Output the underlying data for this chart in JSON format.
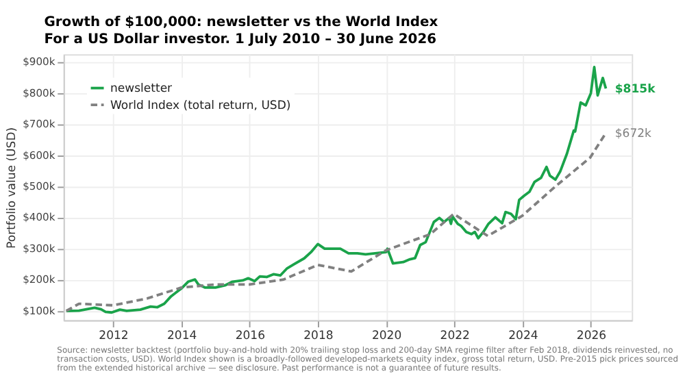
{
  "chart_data": {
    "type": "line",
    "title": "Growth of $100,000: newsletter vs the World Index",
    "subtitle": "For a US Dollar investor. 1 July 2010 – 30 June 2026",
    "ylabel": "Portfolio value (USD)",
    "xlim": [
      2010.55,
      2027.2
    ],
    "xticks": [
      2012,
      2014,
      2016,
      2018,
      2020,
      2022,
      2024,
      2026
    ],
    "ylim": [
      70,
      925
    ],
    "yticks": [
      {
        "value": 100,
        "label": "$100k"
      },
      {
        "value": 200,
        "label": "$200k"
      },
      {
        "value": 300,
        "label": "$300k"
      },
      {
        "value": 400,
        "label": "$400k"
      },
      {
        "value": 500,
        "label": "$500k"
      },
      {
        "value": 600,
        "label": "$600k"
      },
      {
        "value": 700,
        "label": "$700k"
      },
      {
        "value": 800,
        "label": "$800k"
      },
      {
        "value": 900,
        "label": "$900k"
      }
    ],
    "grid": true,
    "legend": "top left",
    "marker": "none",
    "series": [
      {
        "name": "newsletter",
        "color": "#1aa34a",
        "line_style": "solid",
        "x": [
          2010.63,
          2011.0,
          2011.46,
          2011.65,
          2011.78,
          2011.96,
          2012.2,
          2012.4,
          2012.8,
          2013.1,
          2013.3,
          2013.5,
          2013.7,
          2014.0,
          2014.2,
          2014.4,
          2014.5,
          2014.7,
          2015.0,
          2015.3,
          2015.5,
          2015.8,
          2015.96,
          2016.15,
          2016.3,
          2016.5,
          2016.7,
          2016.9,
          2017.1,
          2017.3,
          2017.6,
          2017.8,
          2018.0,
          2018.2,
          2018.4,
          2018.66,
          2018.9,
          2019.16,
          2019.4,
          2020.0,
          2020.04,
          2020.2,
          2020.5,
          2020.7,
          2020.85,
          2021.0,
          2021.16,
          2021.4,
          2021.56,
          2021.7,
          2021.85,
          2021.9,
          2021.95,
          2022.1,
          2022.2,
          2022.35,
          2022.5,
          2022.6,
          2022.7,
          2022.85,
          2023.0,
          2023.2,
          2023.4,
          2023.5,
          2023.66,
          2023.8,
          2023.9,
          2024.04,
          2024.2,
          2024.35,
          2024.54,
          2024.7,
          2024.8,
          2024.96,
          2025.1,
          2025.3,
          2025.5,
          2025.54,
          2025.7,
          2025.85,
          2026.0,
          2026.1,
          2026.2,
          2026.35,
          2026.44
        ],
        "values": [
          100,
          101,
          110,
          105,
          97,
          95,
          104,
          100,
          104,
          114,
          112,
          123,
          147,
          172,
          194,
          201,
          185,
          175,
          175,
          183,
          194,
          198,
          205,
          196,
          211,
          209,
          218,
          214,
          237,
          250,
          269,
          289,
          315,
          300,
          300,
          300,
          285,
          285,
          282,
          289,
          300,
          253,
          257,
          266,
          270,
          312,
          321,
          386,
          399,
          386,
          399,
          380,
          403,
          380,
          373,
          354,
          347,
          354,
          334,
          354,
          380,
          401,
          382,
          418,
          412,
          395,
          457,
          470,
          483,
          515,
          528,
          563,
          535,
          522,
          548,
          606,
          680,
          677,
          770,
          761,
          800,
          884,
          793,
          849,
          815
        ]
      },
      {
        "name": "World Index (total return, USD)",
        "color": "#808080",
        "line_style": "dashed",
        "x": [
          2010.63,
          2011.0,
          2012.0,
          2013.0,
          2014.0,
          2015.0,
          2016.0,
          2017.0,
          2018.0,
          2018.98,
          2020.0,
          2021.3,
          2021.98,
          2022.98,
          2023.98,
          2024.98,
          2025.98,
          2026.44
        ],
        "values": [
          100,
          123,
          118,
          140,
          175,
          185,
          185,
          201,
          248,
          227,
          295,
          347,
          412,
          341,
          405,
          502,
          593,
          672
        ]
      }
    ],
    "annotations": [
      {
        "text": "$815k",
        "x": 2026.44,
        "y": 815
      },
      {
        "text": "$672k",
        "x": 2026.44,
        "y": 672
      },
      "Source: newsletter backtest (portfolio buy-and-hold with 20% trailing stop loss and 200-day SMA regime filter after Feb 2018, dividends reinvested, no transaction costs, USD). World Index shown is a broadly-followed developed-markets equity index, gross total return, USD. Pre-2015 pick prices sourced from the extended historical archive — see disclosure. Past performance is not a guarantee of future results."
    ]
  }
}
